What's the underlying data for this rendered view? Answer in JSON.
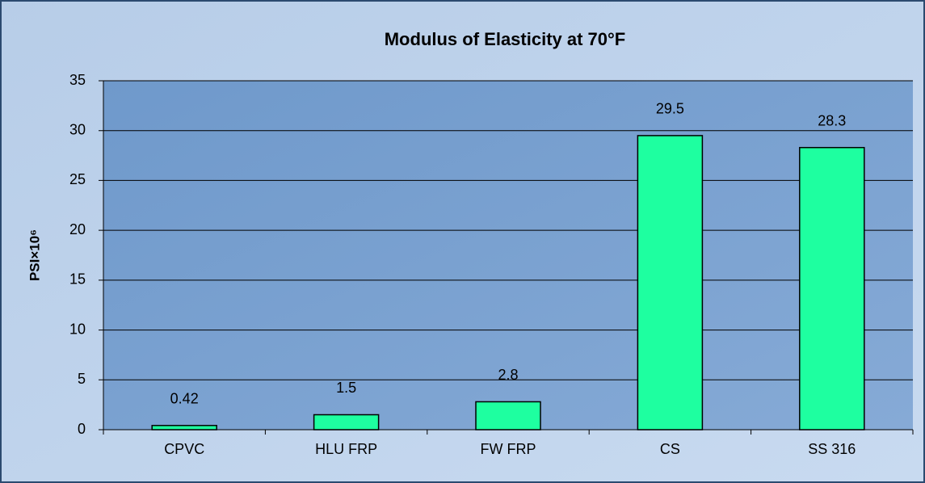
{
  "chart_data": {
    "type": "bar",
    "title": "Modulus of Elasticity at 70°F",
    "y_label": "PSI×10⁶",
    "categories": [
      "CPVC",
      "HLU FRP",
      "FW FRP",
      "CS",
      "SS 316"
    ],
    "values": [
      0.42,
      1.5,
      2.8,
      29.5,
      28.3
    ],
    "color": "#1effa0",
    "ylim": [
      0,
      35
    ],
    "yticks": [
      0,
      5,
      10,
      15,
      20,
      25,
      30,
      35
    ],
    "grid": true
  }
}
